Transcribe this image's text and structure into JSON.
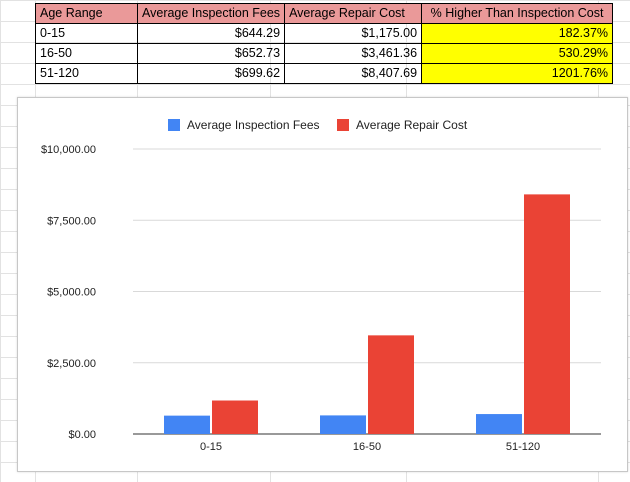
{
  "table": {
    "headers": [
      "Age Range",
      "Average Inspection Fees",
      "Average Repair Cost",
      "% Higher Than Inspection Cost"
    ],
    "rows": [
      [
        "0-15",
        "$644.29",
        "$1,175.00",
        "182.37%"
      ],
      [
        "16-50",
        "$652.73",
        "$3,461.36",
        "530.29%"
      ],
      [
        "51-120",
        "$699.62",
        "$8,407.69",
        "1201.76%"
      ]
    ]
  },
  "colors": {
    "header_fill": "#ea9999",
    "highlight_fill": "#ffff00",
    "series_blue": "#4285f4",
    "series_red": "#ea4335"
  },
  "chart_data": {
    "type": "bar",
    "categories": [
      "0-15",
      "16-50",
      "51-120"
    ],
    "series": [
      {
        "name": "Average Inspection Fees",
        "values": [
          644.29,
          652.73,
          699.62
        ],
        "color": "#4285f4"
      },
      {
        "name": "Average Repair Cost",
        "values": [
          1175.0,
          3461.36,
          8407.69
        ],
        "color": "#ea4335"
      }
    ],
    "yticks": [
      "$0.00",
      "$2,500.00",
      "$5,000.00",
      "$7,500.00",
      "$10,000.00"
    ],
    "ylim": [
      0,
      10000
    ],
    "legend": "top",
    "grid": true
  }
}
